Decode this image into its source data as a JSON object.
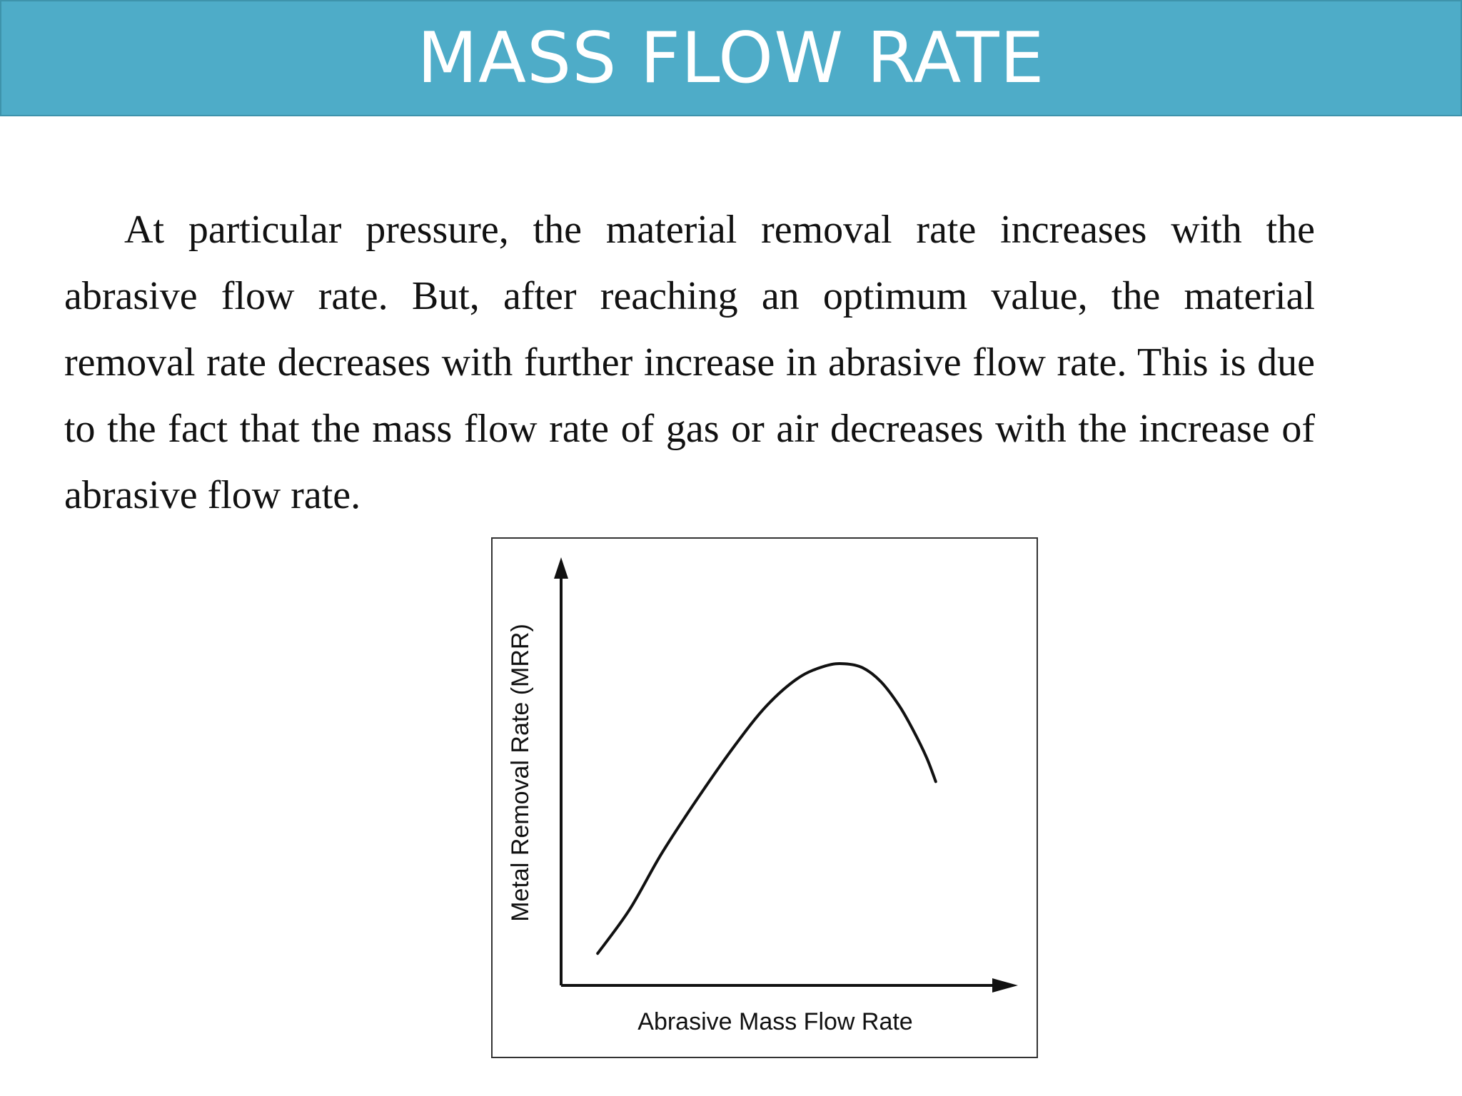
{
  "slide": {
    "title": "MASS FLOW RATE",
    "paragraph": "At particular pressure, the material removal rate increases with the abrasive flow rate. But, after reaching an optimum value, the material removal rate decreases with further increase in abrasive flow rate. This is due to the fact that the mass flow rate of gas or air decreases with the increase of abrasive flow rate."
  },
  "colors": {
    "title_bar": "#4eacc8",
    "title_text": "#ffffff",
    "curve": "#111111"
  },
  "chart_data": {
    "type": "line",
    "xlabel": "Abrasive Mass Flow Rate",
    "ylabel": "Metal Removal Rate (MRR)",
    "xlim": [
      0,
      100
    ],
    "ylim": [
      0,
      100
    ],
    "grid": false,
    "series": [
      {
        "x": [
          8,
          15,
          22,
          30,
          38,
          45,
          52,
          58,
          62,
          66,
          70,
          74,
          77,
          80,
          82
        ],
        "y": [
          8,
          19,
          33,
          47,
          60,
          70,
          77,
          80,
          80.5,
          79.5,
          76,
          70,
          64,
          57,
          51
        ]
      }
    ]
  }
}
